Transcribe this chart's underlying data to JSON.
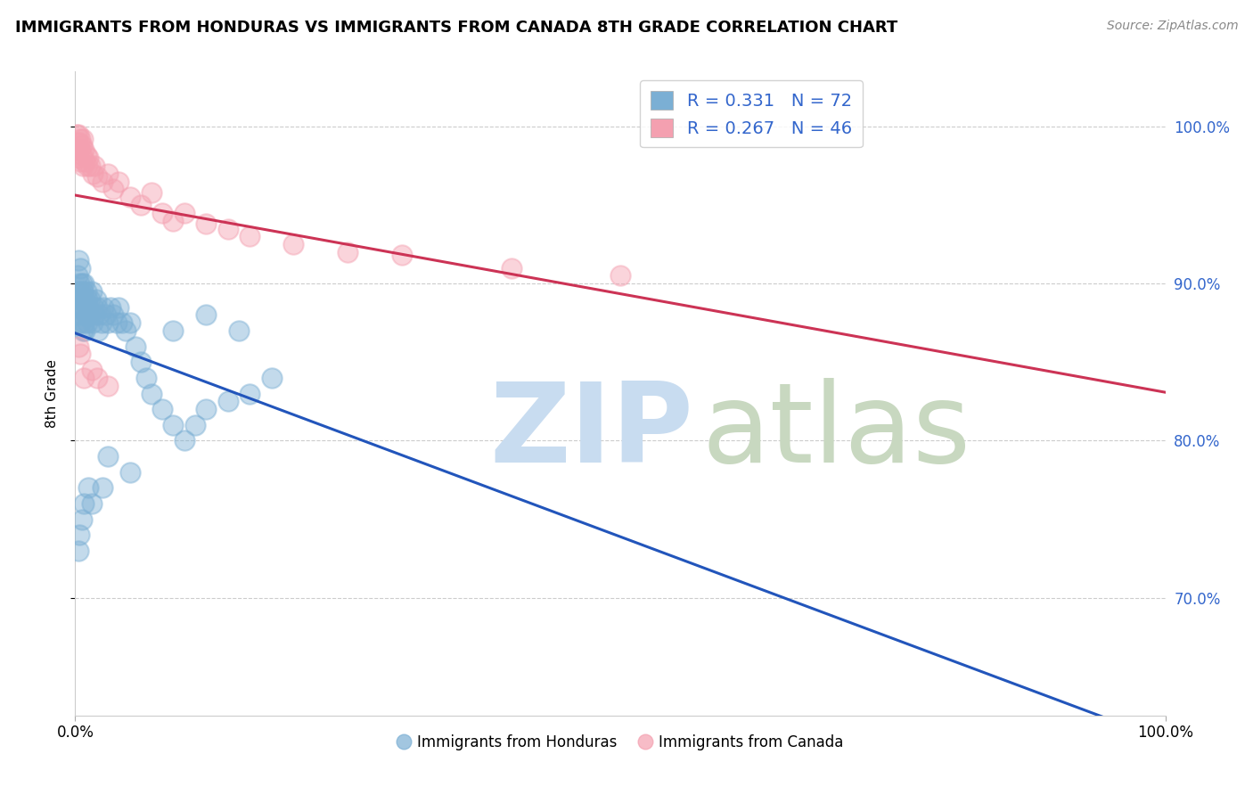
{
  "title": "IMMIGRANTS FROM HONDURAS VS IMMIGRANTS FROM CANADA 8TH GRADE CORRELATION CHART",
  "source": "Source: ZipAtlas.com",
  "ylabel": "8th Grade",
  "legend_label1": "Immigrants from Honduras",
  "legend_label2": "Immigrants from Canada",
  "r1": 0.331,
  "n1": 72,
  "r2": 0.267,
  "n2": 46,
  "color_blue": "#7BAFD4",
  "color_pink": "#F4A0B0",
  "line_blue": "#2255BB",
  "line_pink": "#CC3355",
  "xlim": [
    0.0,
    1.0
  ],
  "ylim": [
    0.625,
    1.035
  ],
  "yticks": [
    0.7,
    0.8,
    0.9,
    1.0
  ],
  "ytick_labels": [
    "70.0%",
    "80.0%",
    "90.0%",
    "100.0%"
  ],
  "blue_x": [
    0.001,
    0.002,
    0.002,
    0.003,
    0.003,
    0.003,
    0.004,
    0.004,
    0.005,
    0.005,
    0.005,
    0.006,
    0.006,
    0.006,
    0.007,
    0.007,
    0.007,
    0.008,
    0.008,
    0.008,
    0.009,
    0.009,
    0.01,
    0.01,
    0.011,
    0.011,
    0.012,
    0.013,
    0.014,
    0.015,
    0.016,
    0.017,
    0.018,
    0.019,
    0.02,
    0.021,
    0.022,
    0.024,
    0.026,
    0.028,
    0.03,
    0.032,
    0.035,
    0.038,
    0.04,
    0.043,
    0.046,
    0.05,
    0.055,
    0.06,
    0.065,
    0.07,
    0.08,
    0.09,
    0.1,
    0.11,
    0.12,
    0.14,
    0.16,
    0.18,
    0.05,
    0.015,
    0.025,
    0.03,
    0.008,
    0.006,
    0.004,
    0.003,
    0.012,
    0.09,
    0.12,
    0.15
  ],
  "blue_y": [
    0.88,
    0.895,
    0.905,
    0.915,
    0.89,
    0.875,
    0.885,
    0.9,
    0.91,
    0.895,
    0.875,
    0.9,
    0.89,
    0.88,
    0.895,
    0.885,
    0.87,
    0.9,
    0.885,
    0.875,
    0.89,
    0.87,
    0.895,
    0.88,
    0.875,
    0.89,
    0.885,
    0.88,
    0.89,
    0.895,
    0.875,
    0.885,
    0.88,
    0.89,
    0.885,
    0.87,
    0.88,
    0.875,
    0.885,
    0.88,
    0.875,
    0.885,
    0.88,
    0.875,
    0.885,
    0.875,
    0.87,
    0.875,
    0.86,
    0.85,
    0.84,
    0.83,
    0.82,
    0.81,
    0.8,
    0.81,
    0.82,
    0.825,
    0.83,
    0.84,
    0.78,
    0.76,
    0.77,
    0.79,
    0.76,
    0.75,
    0.74,
    0.73,
    0.77,
    0.87,
    0.88,
    0.87
  ],
  "pink_x": [
    0.001,
    0.002,
    0.002,
    0.003,
    0.003,
    0.004,
    0.004,
    0.005,
    0.005,
    0.006,
    0.006,
    0.007,
    0.007,
    0.008,
    0.009,
    0.01,
    0.011,
    0.012,
    0.014,
    0.016,
    0.018,
    0.02,
    0.025,
    0.03,
    0.035,
    0.04,
    0.05,
    0.06,
    0.07,
    0.08,
    0.09,
    0.1,
    0.12,
    0.14,
    0.16,
    0.2,
    0.25,
    0.3,
    0.4,
    0.5,
    0.003,
    0.005,
    0.008,
    0.015,
    0.02,
    0.03
  ],
  "pink_y": [
    0.995,
    0.99,
    0.985,
    0.995,
    0.98,
    0.99,
    0.985,
    0.992,
    0.978,
    0.988,
    0.982,
    0.975,
    0.992,
    0.985,
    0.978,
    0.982,
    0.975,
    0.98,
    0.975,
    0.97,
    0.975,
    0.968,
    0.965,
    0.97,
    0.96,
    0.965,
    0.955,
    0.95,
    0.958,
    0.945,
    0.94,
    0.945,
    0.938,
    0.935,
    0.93,
    0.925,
    0.92,
    0.918,
    0.91,
    0.905,
    0.86,
    0.855,
    0.84,
    0.845,
    0.84,
    0.835
  ]
}
